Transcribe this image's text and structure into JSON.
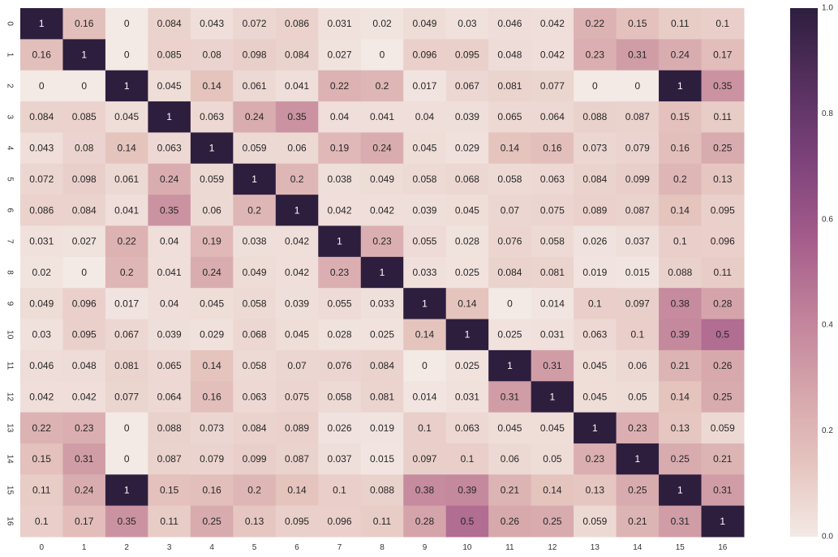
{
  "chart_data": {
    "type": "heatmap",
    "x_labels": [
      "0",
      "1",
      "2",
      "3",
      "4",
      "5",
      "6",
      "7",
      "8",
      "9",
      "10",
      "11",
      "12",
      "13",
      "14",
      "15",
      "16"
    ],
    "y_labels": [
      "0",
      "1",
      "2",
      "3",
      "4",
      "5",
      "6",
      "7",
      "8",
      "9",
      "10",
      "11",
      "12",
      "13",
      "14",
      "15",
      "16"
    ],
    "values": [
      [
        1,
        0.16,
        0,
        0.084,
        0.043,
        0.072,
        0.086,
        0.031,
        0.02,
        0.049,
        0.03,
        0.046,
        0.042,
        0.22,
        0.15,
        0.11,
        0.1
      ],
      [
        0.16,
        1,
        0,
        0.085,
        0.08,
        0.098,
        0.084,
        0.027,
        0,
        0.096,
        0.095,
        0.048,
        0.042,
        0.23,
        0.31,
        0.24,
        0.17
      ],
      [
        0,
        0,
        1,
        0.045,
        0.14,
        0.061,
        0.041,
        0.22,
        0.2,
        0.017,
        0.067,
        0.081,
        0.077,
        0,
        0,
        1,
        0.35
      ],
      [
        0.084,
        0.085,
        0.045,
        1,
        0.063,
        0.24,
        0.35,
        0.04,
        0.041,
        0.04,
        0.039,
        0.065,
        0.064,
        0.088,
        0.087,
        0.15,
        0.11
      ],
      [
        0.043,
        0.08,
        0.14,
        0.063,
        1,
        0.059,
        0.06,
        0.19,
        0.24,
        0.045,
        0.029,
        0.14,
        0.16,
        0.073,
        0.079,
        0.16,
        0.25
      ],
      [
        0.072,
        0.098,
        0.061,
        0.24,
        0.059,
        1,
        0.2,
        0.038,
        0.049,
        0.058,
        0.068,
        0.058,
        0.063,
        0.084,
        0.099,
        0.2,
        0.13
      ],
      [
        0.086,
        0.084,
        0.041,
        0.35,
        0.06,
        0.2,
        1,
        0.042,
        0.042,
        0.039,
        0.045,
        0.07,
        0.075,
        0.089,
        0.087,
        0.14,
        0.095
      ],
      [
        0.031,
        0.027,
        0.22,
        0.04,
        0.19,
        0.038,
        0.042,
        1,
        0.23,
        0.055,
        0.028,
        0.076,
        0.058,
        0.026,
        0.037,
        0.1,
        0.096
      ],
      [
        0.02,
        0,
        0.2,
        0.041,
        0.24,
        0.049,
        0.042,
        0.23,
        1,
        0.033,
        0.025,
        0.084,
        0.081,
        0.019,
        0.015,
        0.088,
        0.11
      ],
      [
        0.049,
        0.096,
        0.017,
        0.04,
        0.045,
        0.058,
        0.039,
        0.055,
        0.033,
        1,
        0.14,
        0,
        0.014,
        0.1,
        0.097,
        0.38,
        0.28
      ],
      [
        0.03,
        0.095,
        0.067,
        0.039,
        0.029,
        0.068,
        0.045,
        0.028,
        0.025,
        0.14,
        1,
        0.025,
        0.031,
        0.063,
        0.1,
        0.39,
        0.5
      ],
      [
        0.046,
        0.048,
        0.081,
        0.065,
        0.14,
        0.058,
        0.07,
        0.076,
        0.084,
        0,
        0.025,
        1,
        0.31,
        0.045,
        0.06,
        0.21,
        0.26
      ],
      [
        0.042,
        0.042,
        0.077,
        0.064,
        0.16,
        0.063,
        0.075,
        0.058,
        0.081,
        0.014,
        0.031,
        0.31,
        1,
        0.045,
        0.05,
        0.14,
        0.25
      ],
      [
        0.22,
        0.23,
        0,
        0.088,
        0.073,
        0.084,
        0.089,
        0.026,
        0.019,
        0.1,
        0.063,
        0.045,
        0.045,
        1,
        0.23,
        0.13,
        0.059
      ],
      [
        0.15,
        0.31,
        0,
        0.087,
        0.079,
        0.099,
        0.087,
        0.037,
        0.015,
        0.097,
        0.1,
        0.06,
        0.05,
        0.23,
        1,
        0.25,
        0.21
      ],
      [
        0.11,
        0.24,
        1,
        0.15,
        0.16,
        0.2,
        0.14,
        0.1,
        0.088,
        0.38,
        0.39,
        0.21,
        0.14,
        0.13,
        0.25,
        1,
        0.31
      ],
      [
        0.1,
        0.17,
        0.35,
        0.11,
        0.25,
        0.13,
        0.095,
        0.096,
        0.11,
        0.28,
        0.5,
        0.26,
        0.25,
        0.059,
        0.21,
        0.31,
        1
      ]
    ],
    "vmin": 0.0,
    "vmax": 1.0,
    "colorbar_ticks": [
      "0.0",
      "0.2",
      "0.4",
      "0.6",
      "0.8",
      "1.0"
    ],
    "colormap": [
      "#f3e9e5",
      "#e5c3bd",
      "#d4a3aa",
      "#bf7f99",
      "#a25b8a",
      "#7c427a",
      "#56305f",
      "#2d1e3e"
    ],
    "annotation_dark_text": "#262626",
    "annotation_light_text": "#ffffff"
  }
}
